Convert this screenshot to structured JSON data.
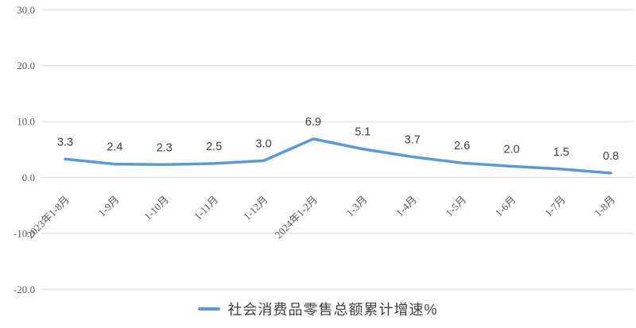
{
  "chart_data": {
    "type": "line",
    "categories": [
      "2023年1-8月",
      "1-9月",
      "1-10月",
      "1-11月",
      "1-12月",
      "2024年1-2月",
      "1-3月",
      "1-4月",
      "1-5月",
      "1-6月",
      "1-7月",
      "1-8月"
    ],
    "series": [
      {
        "name": "社会消费品零售总额累计增速%",
        "values": [
          3.3,
          2.4,
          2.3,
          2.5,
          3.0,
          6.9,
          5.1,
          3.7,
          2.6,
          2.0,
          1.5,
          0.8
        ],
        "color": "#5B9BD5"
      }
    ],
    "title": "",
    "xlabel": "",
    "ylabel": "",
    "ylim": [
      -20,
      30
    ],
    "ytick_step": 10,
    "ytick_labels": [
      "30.0",
      "20.0",
      "10.0",
      "0.0",
      "-10.0",
      "-20.0"
    ],
    "grid": true,
    "data_labels": true,
    "legend_position": "bottom",
    "colors": {
      "line": "#5B9BD5",
      "gridline": "#D9D9D9",
      "axis_text": "#595959",
      "data_label_text": "#404040"
    }
  }
}
